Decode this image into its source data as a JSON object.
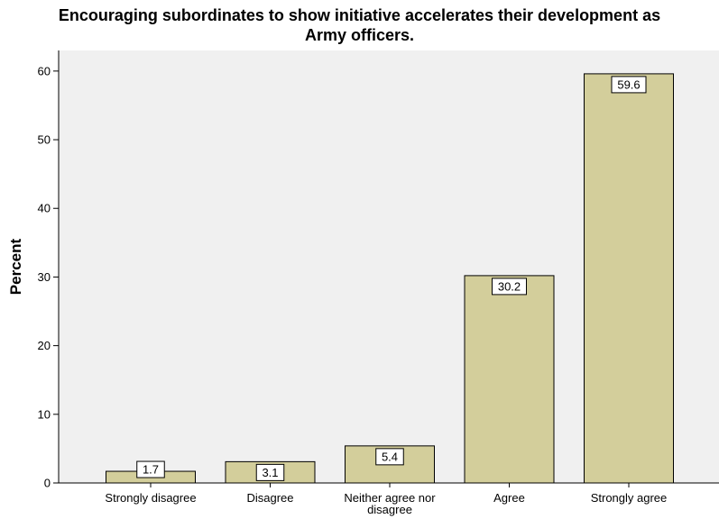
{
  "chart_data": {
    "type": "bar",
    "title": "Encouraging subordinates to show initiative accelerates their development as\nArmy officers.",
    "xlabel": "",
    "ylabel": "Percent",
    "categories": [
      "Strongly disagree",
      "Disagree",
      "Neither agree nor disagree",
      "Agree",
      "Strongly agree"
    ],
    "category_label_lines": [
      [
        "Strongly disagree"
      ],
      [
        "Disagree"
      ],
      [
        "Neither agree nor",
        "disagree"
      ],
      [
        "Agree"
      ],
      [
        "Strongly agree"
      ]
    ],
    "values": [
      1.7,
      3.1,
      5.4,
      30.2,
      59.6
    ],
    "data_labels": [
      "1.7",
      "3.1",
      "5.4",
      "30.2",
      "59.6"
    ],
    "ylim": [
      0,
      63
    ],
    "yticks": [
      0,
      10,
      20,
      30,
      40,
      50,
      60
    ],
    "grid": false,
    "legend": "none",
    "colors": {
      "bar_fill": "#d3ce9b",
      "bar_stroke": "#000000",
      "plot_background": "#f0f0f0",
      "label_box": "#ffffff"
    }
  }
}
